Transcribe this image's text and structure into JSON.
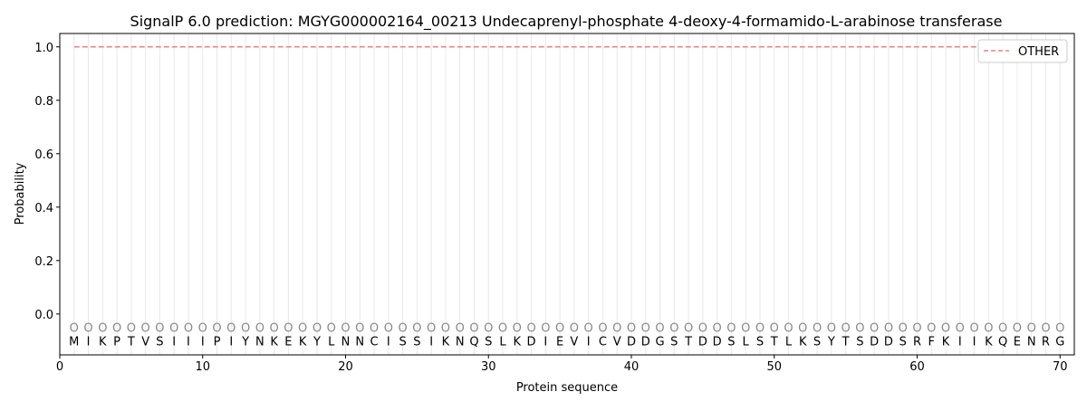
{
  "chart_data": {
    "type": "line",
    "title": "SignalP 6.0 prediction: MGYG000002164_00213 Undecaprenyl-phosphate 4-deoxy-4-formamido-L-arabinose transferase",
    "xlabel": "Protein sequence",
    "ylabel": "Probability",
    "xlim": [
      0,
      71
    ],
    "ylim": [
      -0.153,
      1.05
    ],
    "xticks": [
      0,
      10,
      20,
      30,
      40,
      50,
      60,
      70
    ],
    "yticks": [
      0.0,
      0.2,
      0.4,
      0.6,
      0.8,
      1.0
    ],
    "ytick_labels": [
      "0.0",
      "0.2",
      "0.4",
      "0.6",
      "0.8",
      "1.0"
    ],
    "sequence": "MIKPTVSIIIPIYNKEKYLNNCISSIKNQSLKDIEVICVDDGSTDDSLSTLKSYTSDDSRFKIIKQENRG",
    "predicted_labels": "OOOOOOOOOOOOOOOOOOOOOOOOOOOOOOOOOOOOOOOOOOOOOOOOOOOOOOOOOOOOOOOOOOOOOO",
    "series": [
      {
        "name": "OTHER",
        "x_range": [
          1,
          70
        ],
        "value": 1.0,
        "color": "#f08080",
        "style": "dashed"
      }
    ],
    "legend": "top-right",
    "grid": "vertical lines at each residue"
  }
}
